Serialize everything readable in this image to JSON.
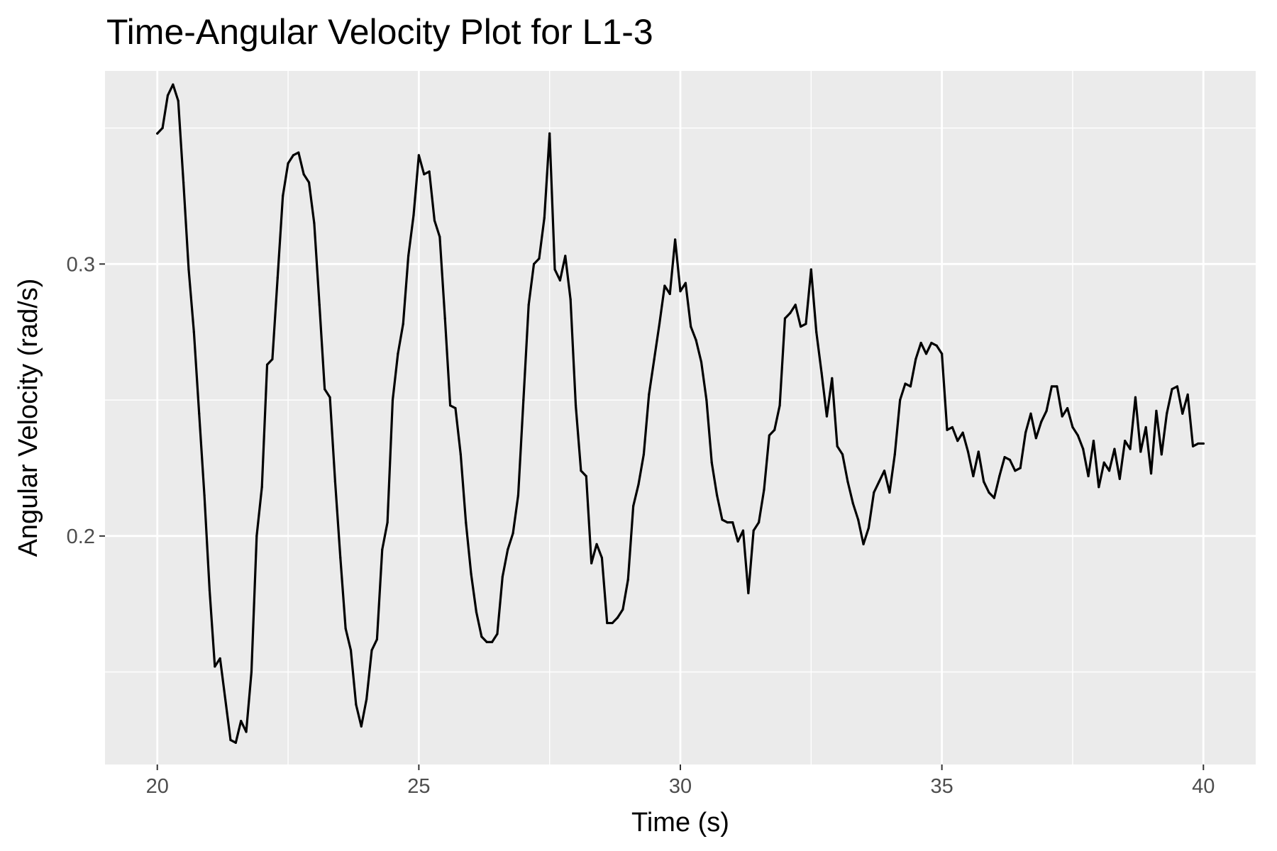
{
  "chart_data": {
    "type": "line",
    "title": "Time-Angular Velocity Plot for L1-3",
    "xlabel": "Time (s)",
    "ylabel": "Angular Velocity (rad/s)",
    "xlim": [
      19.0,
      41.0
    ],
    "ylim": [
      0.116,
      0.371
    ],
    "x_ticks": [
      20,
      25,
      30,
      35,
      40
    ],
    "x_tick_labels": [
      "20",
      "25",
      "30",
      "35",
      "40"
    ],
    "y_ticks": [
      0.2,
      0.3
    ],
    "y_tick_labels": [
      "0.2",
      "0.3"
    ],
    "x_minor_ticks": [
      22.5,
      27.5,
      32.5,
      37.5
    ],
    "y_minor_ticks": [
      0.15,
      0.25,
      0.35
    ],
    "grid": true,
    "panel_background": "#ebebeb",
    "grid_color": "#ffffff",
    "line_color": "#000000",
    "series": [
      {
        "x": [
          20.0,
          20.1,
          20.2,
          20.3,
          20.4,
          20.5,
          20.6,
          20.7,
          20.8,
          20.9,
          21.0,
          21.1,
          21.2,
          21.3,
          21.4,
          21.5,
          21.6,
          21.7,
          21.8,
          21.9,
          22.0,
          22.1,
          22.2,
          22.3,
          22.4,
          22.5,
          22.6,
          22.7,
          22.8,
          22.9,
          23.0,
          23.1,
          23.2,
          23.3,
          23.4,
          23.5,
          23.6,
          23.7,
          23.8,
          23.9,
          24.0,
          24.1,
          24.2,
          24.3,
          24.4,
          24.5,
          24.6,
          24.7,
          24.8,
          24.9,
          25.0,
          25.1,
          25.2,
          25.3,
          25.4,
          25.5,
          25.6,
          25.7,
          25.8,
          25.9,
          26.0,
          26.1,
          26.2,
          26.3,
          26.4,
          26.5,
          26.6,
          26.7,
          26.8,
          26.9,
          27.0,
          27.1,
          27.2,
          27.3,
          27.4,
          27.5,
          27.6,
          27.7,
          27.8,
          27.9,
          28.0,
          28.1,
          28.2,
          28.3,
          28.4,
          28.5,
          28.6,
          28.7,
          28.8,
          28.9,
          29.0,
          29.1,
          29.2,
          29.3,
          29.4,
          29.5,
          29.6,
          29.7,
          29.8,
          29.9,
          30.0,
          30.1,
          30.2,
          30.3,
          30.4,
          30.5,
          30.6,
          30.7,
          30.8,
          30.9,
          31.0,
          31.1,
          31.2,
          31.3,
          31.4,
          31.5,
          31.6,
          31.7,
          31.8,
          31.9,
          32.0,
          32.1,
          32.2,
          32.3,
          32.4,
          32.5,
          32.6,
          32.7,
          32.8,
          32.9,
          33.0,
          33.1,
          33.2,
          33.3,
          33.4,
          33.5,
          33.6,
          33.7,
          33.8,
          33.9,
          34.0,
          34.1,
          34.2,
          34.3,
          34.4,
          34.5,
          34.6,
          34.7,
          34.8,
          34.9,
          35.0,
          35.1,
          35.2,
          35.3,
          35.4,
          35.5,
          35.6,
          35.7,
          35.8,
          35.9,
          36.0,
          36.1,
          36.2,
          36.3,
          36.4,
          36.5,
          36.6,
          36.7,
          36.8,
          36.9,
          37.0,
          37.1,
          37.2,
          37.3,
          37.4,
          37.5,
          37.6,
          37.7,
          37.8,
          37.9,
          38.0,
          38.1,
          38.2,
          38.3,
          38.4,
          38.5,
          38.6,
          38.7,
          38.8,
          38.9,
          39.0,
          39.1,
          39.2,
          39.3,
          39.4,
          39.5,
          39.6,
          39.7,
          39.8,
          39.9,
          40.0
        ],
        "y": [
          0.348,
          0.35,
          0.362,
          0.366,
          0.36,
          0.33,
          0.298,
          0.275,
          0.245,
          0.215,
          0.18,
          0.152,
          0.155,
          0.14,
          0.125,
          0.124,
          0.132,
          0.128,
          0.15,
          0.2,
          0.218,
          0.263,
          0.265,
          0.295,
          0.325,
          0.337,
          0.34,
          0.341,
          0.333,
          0.33,
          0.315,
          0.285,
          0.254,
          0.251,
          0.22,
          0.192,
          0.166,
          0.158,
          0.138,
          0.13,
          0.14,
          0.158,
          0.162,
          0.195,
          0.205,
          0.25,
          0.267,
          0.278,
          0.303,
          0.318,
          0.34,
          0.333,
          0.334,
          0.316,
          0.31,
          0.28,
          0.248,
          0.247,
          0.23,
          0.205,
          0.186,
          0.172,
          0.163,
          0.161,
          0.161,
          0.164,
          0.185,
          0.195,
          0.201,
          0.215,
          0.25,
          0.285,
          0.3,
          0.302,
          0.317,
          0.348,
          0.298,
          0.294,
          0.303,
          0.287,
          0.248,
          0.224,
          0.222,
          0.19,
          0.197,
          0.192,
          0.168,
          0.168,
          0.17,
          0.173,
          0.184,
          0.211,
          0.219,
          0.23,
          0.252,
          0.265,
          0.278,
          0.292,
          0.289,
          0.309,
          0.29,
          0.293,
          0.277,
          0.272,
          0.264,
          0.25,
          0.227,
          0.215,
          0.206,
          0.205,
          0.205,
          0.198,
          0.202,
          0.179,
          0.202,
          0.205,
          0.217,
          0.237,
          0.239,
          0.248,
          0.28,
          0.282,
          0.285,
          0.277,
          0.278,
          0.298,
          0.275,
          0.26,
          0.244,
          0.258,
          0.233,
          0.23,
          0.22,
          0.212,
          0.206,
          0.197,
          0.203,
          0.216,
          0.22,
          0.224,
          0.216,
          0.23,
          0.25,
          0.256,
          0.255,
          0.265,
          0.271,
          0.267,
          0.271,
          0.27,
          0.267,
          0.239,
          0.24,
          0.235,
          0.238,
          0.231,
          0.222,
          0.231,
          0.22,
          0.216,
          0.214,
          0.222,
          0.229,
          0.228,
          0.224,
          0.225,
          0.238,
          0.245,
          0.236,
          0.242,
          0.246,
          0.255,
          0.255,
          0.244,
          0.247,
          0.24,
          0.237,
          0.232,
          0.222,
          0.235,
          0.218,
          0.227,
          0.224,
          0.232,
          0.221,
          0.235,
          0.232,
          0.251,
          0.231,
          0.24,
          0.223,
          0.246,
          0.23,
          0.245,
          0.254,
          0.255,
          0.245,
          0.252,
          0.233,
          0.234,
          0.234
        ]
      }
    ]
  }
}
